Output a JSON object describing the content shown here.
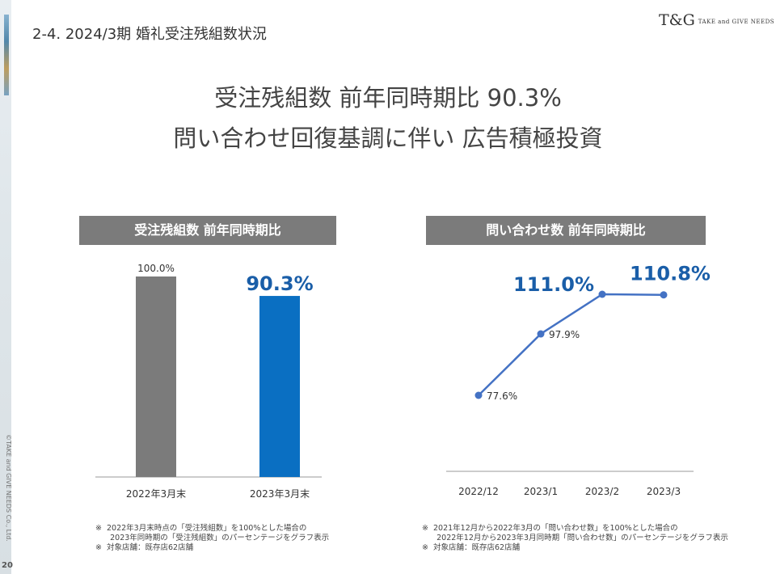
{
  "header": {
    "title": "2-4.  2024/3期  婚礼受注残組数状況",
    "logo_mark": "T&G",
    "logo_text": "TAKE and GIVE NEEDS"
  },
  "headline": {
    "line1": "受注残組数  前年同時期比 90.3%",
    "line2": "問い合わせ回復基調に伴い  広告積極投資"
  },
  "footer": {
    "copyright": "©TAKE and GIVE NEEDS Co., Ltd.",
    "page_number": "20"
  },
  "notes": {
    "left": "※  2022年3月末時点の「受注残組数」を100%とした場合の\n      2023年同時期の「受注残組数」のパーセンテージをグラフ表示\n※  対象店舗：既存店62店舗",
    "right": "※  2021年12月から2022年3月の「問い合わせ数」を100%とした場合の\n      2022年12月から2023年3月同時期「問い合わせ数」のパーセンテージをグラフ表示\n※  対象店舗：既存店62店舗"
  },
  "chart_data": [
    {
      "type": "bar",
      "title": "受注残組数  前年同時期比",
      "categories": [
        "2022年3月末",
        "2023年3月末"
      ],
      "values": [
        100.0,
        90.3
      ],
      "labels": [
        "100.0%",
        "90.3%"
      ],
      "colors": [
        "#7b7b7b",
        "#0a6fc2"
      ],
      "label_colors": [
        "#333333",
        "#1a5ea8"
      ],
      "ylim": [
        0,
        100
      ],
      "grid": false
    },
    {
      "type": "line",
      "title": "問い合わせ数  前年同時期比",
      "categories": [
        "2022/12",
        "2023/1",
        "2023/2",
        "2023/3"
      ],
      "values": [
        77.6,
        97.9,
        111.0,
        110.8
      ],
      "labels": [
        "77.6%",
        "97.9%",
        "111.0%",
        "110.8%"
      ],
      "emphasis": [
        false,
        false,
        true,
        true
      ],
      "color": "#4472c4",
      "emphasis_color": "#1a5ea8",
      "ylim": [
        55,
        120
      ],
      "grid": false
    }
  ]
}
